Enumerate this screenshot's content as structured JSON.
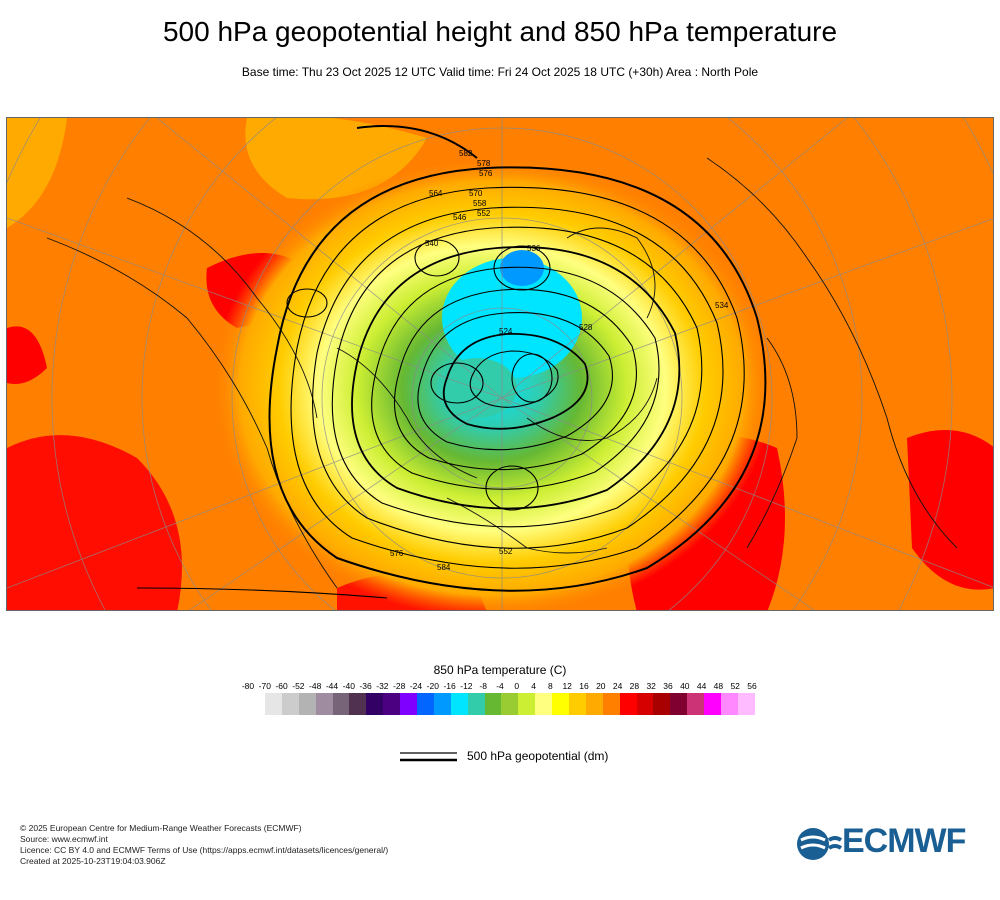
{
  "header": {
    "title": "500 hPa geopotential height and 850 hPa temperature",
    "subtitle": "Base time: Thu 23 Oct 2025 12 UTC Valid time: Fri 24 Oct 2025 18 UTC (+30h) Area : North Pole"
  },
  "map": {
    "contour_labels": [
      "582",
      "578",
      "576",
      "570",
      "564",
      "558",
      "552",
      "546",
      "540",
      "536",
      "528",
      "524",
      "534",
      "576",
      "584",
      "552"
    ],
    "colors": {
      "background_warm": "#ff8000",
      "cold_core": "#00e5ff",
      "contour": "#000000"
    }
  },
  "colorbar": {
    "title": "850 hPa temperature (C)",
    "ticks": [
      "-80",
      "-70",
      "-60",
      "-52",
      "-48",
      "-44",
      "-40",
      "-36",
      "-32",
      "-28",
      "-24",
      "-20",
      "-16",
      "-12",
      "-8",
      "-4",
      "0",
      "4",
      "8",
      "12",
      "16",
      "20",
      "24",
      "28",
      "32",
      "36",
      "40",
      "44",
      "48",
      "52",
      "56"
    ],
    "colors": [
      "#e6e6e6",
      "#cccccc",
      "#b3b3b3",
      "#a08ca0",
      "#786478",
      "#503250",
      "#330066",
      "#4b0082",
      "#8000ff",
      "#0066ff",
      "#0099ff",
      "#00e5ff",
      "#33ccaa",
      "#66b833",
      "#99cc33",
      "#ccee33",
      "#ffff80",
      "#ffff00",
      "#ffcc00",
      "#ffaa00",
      "#ff8000",
      "#ff0000",
      "#d60000",
      "#a80000",
      "#800030",
      "#cc3377",
      "#ff00ff",
      "#ff88ff",
      "#ffbbff",
      "#e6c8e6",
      "#e6e6e6"
    ]
  },
  "legend": {
    "label": "500 hPa geopotential (dm)"
  },
  "credits": {
    "line1": "© 2025 European Centre for Medium-Range Weather Forecasts (ECMWF)",
    "line2": "Source: www.ecmwf.int",
    "line3": "Licence: CC BY 4.0 and ECMWF Terms of Use (https://apps.ecmwf.int/datasets/licences/general/)",
    "line4": "Created at 2025-10-23T19:04:03.906Z"
  },
  "logo": {
    "text": "ECMWF",
    "color": "#1a5f93"
  }
}
